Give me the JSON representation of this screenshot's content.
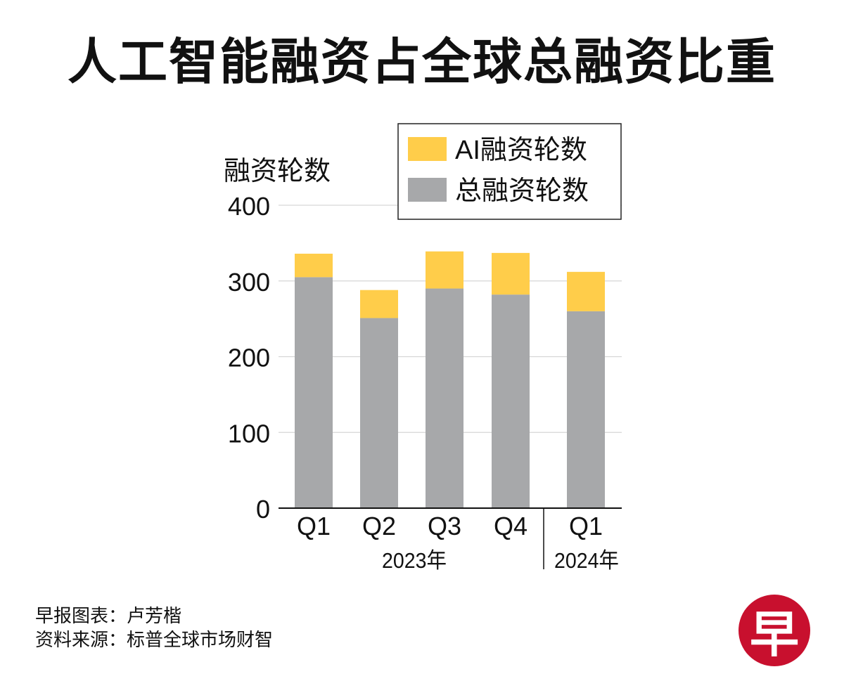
{
  "title": "人工智能融资占全球总融资比重",
  "chart_data": {
    "type": "bar",
    "stacked": true,
    "ylabel": "融资轮数",
    "ylim": [
      0,
      400
    ],
    "yticks": [
      0,
      100,
      200,
      300,
      400
    ],
    "grid": true,
    "legend_position": "top-right",
    "categories": [
      "Q1",
      "Q2",
      "Q3",
      "Q4",
      "Q1"
    ],
    "year_groups": [
      {
        "label": "2023年",
        "categories": [
          "Q1",
          "Q2",
          "Q3",
          "Q4"
        ]
      },
      {
        "label": "2024年",
        "categories": [
          "Q1"
        ]
      }
    ],
    "series": [
      {
        "name": "总融资轮数",
        "color": "#a7a8aa",
        "values": [
          305,
          251,
          290,
          282,
          260
        ]
      },
      {
        "name": "AI融资轮数",
        "color": "#ffcd4a",
        "values": [
          31,
          37,
          49,
          55,
          52
        ]
      }
    ],
    "legend_order": [
      "AI融资轮数",
      "总融资轮数"
    ]
  },
  "footer": {
    "credit": "早报图表：卢芳楷",
    "source": "资料来源：标普全球市场财智"
  },
  "logo": {
    "text": "早",
    "color": "#c8102e"
  }
}
